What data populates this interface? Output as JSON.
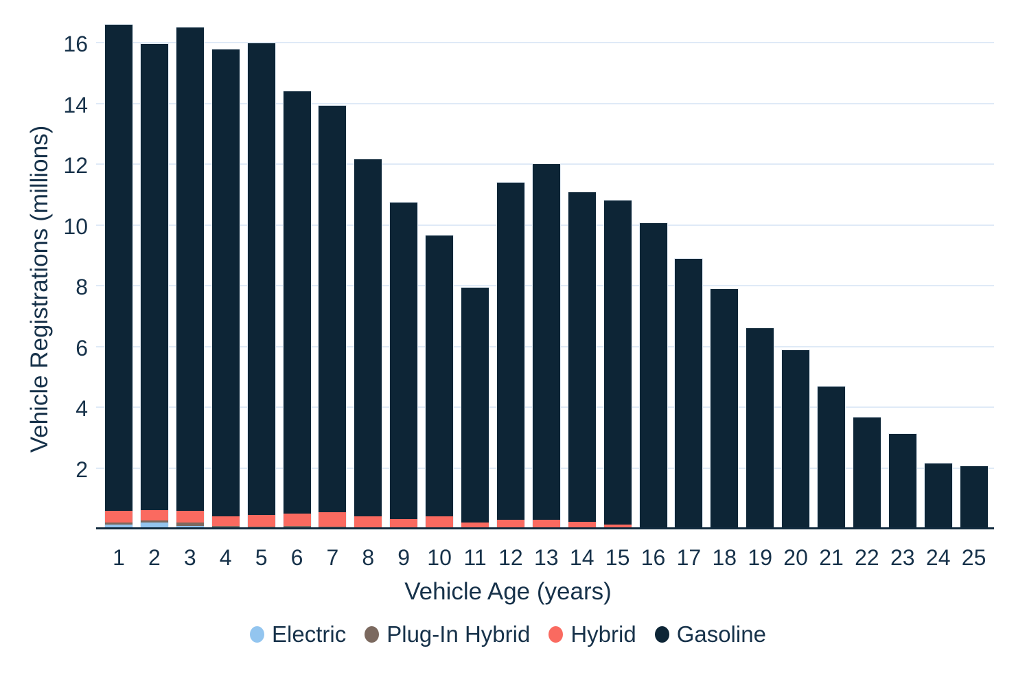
{
  "style": {
    "background": "#ffffff",
    "grid_color": "#dfeaf7",
    "axis_color": "#112a3e",
    "text_color": "#17324a",
    "bar_outline": "#e8f0f8"
  },
  "chart_data": {
    "type": "bar",
    "stacked": true,
    "title": "",
    "xlabel": "Vehicle Age (years)",
    "ylabel": "Vehicle Registrations (millions)",
    "categories": [
      "1",
      "2",
      "3",
      "4",
      "5",
      "6",
      "7",
      "8",
      "9",
      "10",
      "11",
      "12",
      "13",
      "14",
      "15",
      "16",
      "17",
      "18",
      "19",
      "20",
      "21",
      "22",
      "23",
      "24",
      "25"
    ],
    "yticks": [
      2,
      4,
      6,
      8,
      10,
      12,
      14,
      16
    ],
    "ylim": [
      0,
      17.4
    ],
    "grid": true,
    "legend_position": "bottom",
    "series": [
      {
        "name": "Electric",
        "color": "#93c5ef",
        "values": [
          0.14,
          0.2,
          0.08,
          0.05,
          0.03,
          0.02,
          0.02,
          0.01,
          0.01,
          0.01,
          0,
          0,
          0,
          0,
          0,
          0,
          0,
          0,
          0,
          0,
          0,
          0,
          0,
          0,
          0
        ]
      },
      {
        "name": "Plug-In Hybrid",
        "color": "#7b695f",
        "values": [
          0.07,
          0.08,
          0.12,
          0.05,
          0.04,
          0.06,
          0.05,
          0.03,
          0.02,
          0.02,
          0.02,
          0.01,
          0.01,
          0.01,
          0.01,
          0,
          0,
          0,
          0,
          0,
          0,
          0,
          0,
          0,
          0
        ]
      },
      {
        "name": "Hybrid",
        "color": "#fa6a60",
        "values": [
          0.38,
          0.34,
          0.38,
          0.3,
          0.38,
          0.41,
          0.47,
          0.36,
          0.28,
          0.37,
          0.19,
          0.29,
          0.29,
          0.21,
          0.12,
          0.05,
          0,
          0,
          0,
          0,
          0,
          0,
          0,
          0,
          0
        ]
      },
      {
        "name": "Gasoline",
        "color": "#0d2536",
        "values": [
          16.0,
          15.33,
          15.92,
          15.37,
          15.53,
          13.9,
          13.38,
          11.75,
          10.42,
          9.26,
          7.73,
          11.1,
          11.7,
          10.85,
          10.68,
          10.01,
          8.88,
          7.89,
          6.6,
          5.88,
          4.68,
          3.66,
          3.12,
          2.15,
          2.06
        ]
      }
    ]
  }
}
